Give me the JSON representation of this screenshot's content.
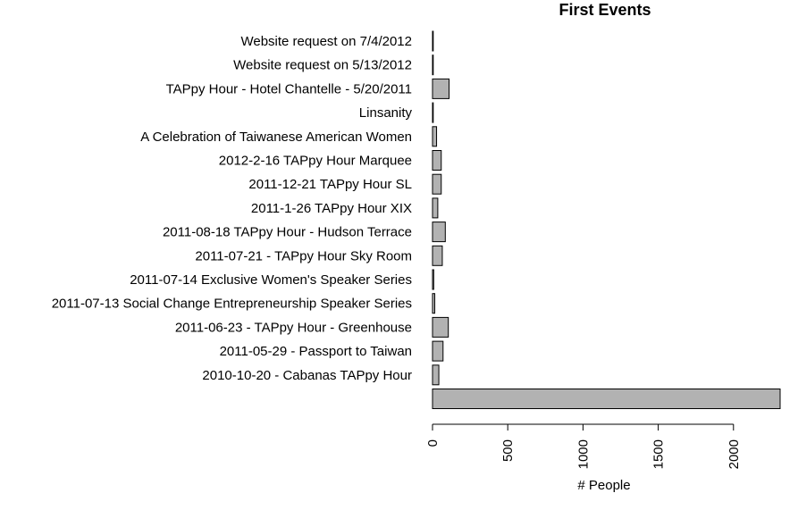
{
  "chart_data": {
    "type": "bar",
    "orientation": "horizontal",
    "title": "First Events",
    "xlabel": "# People",
    "ylabel": "",
    "xlim": [
      0,
      2310
    ],
    "x_ticks": [
      0,
      500,
      1000,
      1500,
      2000
    ],
    "grid": false,
    "categories": [
      "Website request on 7/4/2012",
      "Website request on 5/13/2012",
      "TAPpy Hour - Hotel Chantelle - 5/20/2011",
      "Linsanity",
      "A Celebration of Taiwanese American Women",
      "2012-2-16 TAPpy Hour Marquee",
      "2011-12-21 TAPpy Hour SL",
      "2011-1-26 TAPpy Hour XIX",
      "2011-08-18 TAPpy Hour - Hudson Terrace",
      "2011-07-21 - TAPpy Hour Sky Room",
      "2011-07-14 Exclusive Women's Speaker Series",
      "2011-07-13 Social Change Entrepreneurship Speaker Series",
      "2011-06-23 - TAPpy Hour - Greenhouse",
      "2011-05-29 - Passport to Taiwan",
      "2010-10-20 - Cabanas TAPpy Hour",
      ""
    ],
    "values": [
      3,
      3,
      110,
      3,
      27,
      58,
      58,
      35,
      85,
      65,
      8,
      15,
      105,
      70,
      42,
      2310
    ],
    "colors": {
      "bar_fill": "#b2b2b2",
      "bar_stroke": "#000000"
    }
  }
}
